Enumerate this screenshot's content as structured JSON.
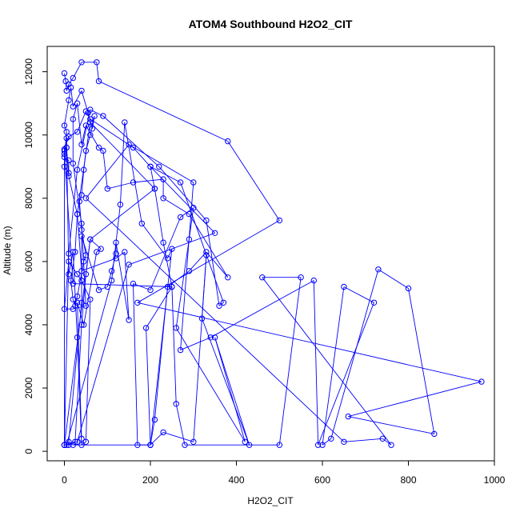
{
  "chart_data": {
    "type": "line",
    "title": "ATOM4 Southbound H2O2_CIT",
    "xlabel": "H2O2_CIT",
    "ylabel": "Altitude (m)",
    "xlim": [
      -40,
      1000
    ],
    "ylim": [
      -300,
      12800
    ],
    "xticks": [
      0,
      200,
      400,
      600,
      800,
      1000
    ],
    "yticks": [
      0,
      2000,
      4000,
      6000,
      8000,
      10000,
      12000
    ],
    "series_color": "#0000ff",
    "grid": false,
    "legend": "none",
    "points": [
      [
        0,
        11950
      ],
      [
        3,
        11700
      ],
      [
        5,
        11400
      ],
      [
        10,
        11600
      ],
      [
        20,
        11800
      ],
      [
        40,
        12300
      ],
      [
        75,
        12300
      ],
      [
        80,
        11700
      ],
      [
        380,
        9800
      ],
      [
        500,
        7300
      ],
      [
        170,
        4700
      ],
      [
        970,
        2200
      ],
      [
        660,
        1100
      ],
      [
        860,
        550
      ],
      [
        800,
        5150
      ],
      [
        730,
        5750
      ],
      [
        620,
        400
      ],
      [
        600,
        200
      ],
      [
        650,
        5200
      ],
      [
        720,
        4700
      ],
      [
        590,
        200
      ],
      [
        580,
        5400
      ],
      [
        340,
        3600
      ],
      [
        270,
        3200
      ],
      [
        300,
        8500
      ],
      [
        150,
        9700
      ],
      [
        50,
        8000
      ],
      [
        650,
        300
      ],
      [
        740,
        400
      ],
      [
        760,
        200
      ],
      [
        460,
        5500
      ],
      [
        550,
        5500
      ],
      [
        500,
        200
      ],
      [
        280,
        200
      ],
      [
        260,
        1500
      ],
      [
        250,
        5200
      ],
      [
        20,
        5300
      ],
      [
        0,
        9400
      ],
      [
        0,
        9550
      ],
      [
        10,
        9950
      ],
      [
        30,
        10100
      ],
      [
        50,
        10750
      ],
      [
        60,
        10500
      ],
      [
        160,
        9600
      ],
      [
        200,
        9000
      ],
      [
        350,
        6900
      ],
      [
        150,
        5900
      ],
      [
        30,
        300
      ],
      [
        0,
        200
      ],
      [
        10,
        6250
      ],
      [
        30,
        8900
      ],
      [
        60,
        10800
      ],
      [
        90,
        10600
      ],
      [
        220,
        9000
      ],
      [
        330,
        7300
      ],
      [
        360,
        4600
      ],
      [
        370,
        4700
      ],
      [
        270,
        8500
      ],
      [
        200,
        9000
      ],
      [
        210,
        8300
      ],
      [
        60,
        6700
      ],
      [
        0,
        200
      ],
      [
        5,
        200
      ],
      [
        110,
        5400
      ],
      [
        130,
        7800
      ],
      [
        140,
        10400
      ],
      [
        180,
        7200
      ],
      [
        240,
        6100
      ],
      [
        250,
        6400
      ],
      [
        200,
        200
      ],
      [
        20,
        200
      ],
      [
        10,
        300
      ],
      [
        40,
        4700
      ],
      [
        40,
        6800
      ],
      [
        80,
        5100
      ],
      [
        100,
        5200
      ],
      [
        110,
        5700
      ],
      [
        120,
        6250
      ],
      [
        120,
        6600
      ],
      [
        150,
        4150
      ],
      [
        140,
        6300
      ],
      [
        120,
        6100
      ],
      [
        40,
        5700
      ],
      [
        30,
        7500
      ],
      [
        60,
        10400
      ],
      [
        210,
        8300
      ],
      [
        230,
        6600
      ],
      [
        250,
        5200
      ],
      [
        190,
        3900
      ],
      [
        200,
        200
      ],
      [
        230,
        600
      ],
      [
        300,
        300
      ],
      [
        330,
        6200
      ],
      [
        320,
        4200
      ],
      [
        430,
        200
      ],
      [
        350,
        3600
      ],
      [
        420,
        300
      ],
      [
        260,
        3900
      ],
      [
        290,
        6700
      ],
      [
        300,
        7700
      ],
      [
        270,
        7400
      ],
      [
        200,
        5100
      ],
      [
        160,
        5300
      ],
      [
        170,
        200
      ],
      [
        200,
        200
      ],
      [
        210,
        1000
      ],
      [
        240,
        5200
      ],
      [
        290,
        5700
      ],
      [
        330,
        6300
      ],
      [
        380,
        5500
      ],
      [
        290,
        7500
      ],
      [
        230,
        8000
      ],
      [
        230,
        8600
      ],
      [
        160,
        8500
      ],
      [
        100,
        8300
      ],
      [
        90,
        9500
      ],
      [
        80,
        9600
      ],
      [
        50,
        10300
      ],
      [
        40,
        9700
      ],
      [
        30,
        11000
      ],
      [
        20,
        10500
      ],
      [
        20,
        9100
      ],
      [
        40,
        7200
      ],
      [
        50,
        4600
      ],
      [
        20,
        4500
      ],
      [
        0,
        4500
      ],
      [
        10,
        6000
      ],
      [
        30,
        5600
      ],
      [
        40,
        5400
      ],
      [
        60,
        4800
      ],
      [
        50,
        300
      ],
      [
        40,
        200
      ],
      [
        30,
        3600
      ],
      [
        20,
        6300
      ],
      [
        10,
        5600
      ],
      [
        5,
        9900
      ],
      [
        5,
        9600
      ],
      [
        0,
        9000
      ],
      [
        10,
        8800
      ],
      [
        10,
        9200
      ],
      [
        0,
        9300
      ],
      [
        5,
        10100
      ],
      [
        0,
        10300
      ],
      [
        10,
        11100
      ],
      [
        15,
        11500
      ],
      [
        20,
        10900
      ],
      [
        40,
        11400
      ],
      [
        55,
        10700
      ],
      [
        65,
        10200
      ],
      [
        70,
        10600
      ],
      [
        60,
        10000
      ],
      [
        50,
        9500
      ],
      [
        45,
        8900
      ],
      [
        40,
        8100
      ],
      [
        35,
        7900
      ],
      [
        40,
        7000
      ],
      [
        50,
        6200
      ],
      [
        45,
        6000
      ],
      [
        30,
        4900
      ],
      [
        25,
        4600
      ],
      [
        20,
        4800
      ],
      [
        15,
        5400
      ],
      [
        25,
        6300
      ],
      [
        30,
        7500
      ],
      [
        10,
        8700
      ],
      [
        5,
        9600
      ],
      [
        0,
        9500
      ],
      [
        0,
        200
      ],
      [
        10,
        200
      ],
      [
        25,
        300
      ],
      [
        40,
        4000
      ],
      [
        50,
        5600
      ],
      [
        60,
        6700
      ],
      [
        85,
        6400
      ],
      [
        75,
        6300
      ],
      [
        45,
        4000
      ],
      [
        30,
        4700
      ],
      [
        40,
        400
      ]
    ]
  }
}
